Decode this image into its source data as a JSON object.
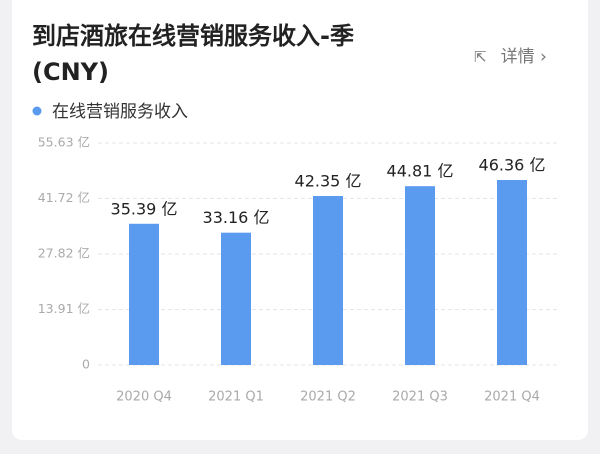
{
  "chart_data": {
    "type": "bar",
    "title": "到店酒旅在线营销服务收入-季 (CNY)",
    "link": "详情",
    "series": [
      {
        "name": "在线营销服务收入",
        "color": "#5a9bef",
        "values": [
          35.39,
          33.16,
          42.35,
          44.81,
          46.36
        ],
        "value_labels": [
          "35.39 亿",
          "33.16 亿",
          "42.35 亿",
          "44.81 亿",
          "46.36 亿"
        ]
      }
    ],
    "categories": [
      "2020 Q4",
      "2021 Q1",
      "2021 Q2",
      "2021 Q3",
      "2021 Q4"
    ],
    "ylim": [
      0,
      55.63
    ],
    "yticks": [
      0,
      {
        "value": 13.91,
        "label": "13.91 亿"
      },
      {
        "value": 27.82,
        "label": "27.82 亿"
      },
      {
        "value": 41.72,
        "label": "41.72 亿"
      },
      {
        "value": 55.63,
        "label": "55.63 亿"
      }
    ],
    "grid": true
  }
}
